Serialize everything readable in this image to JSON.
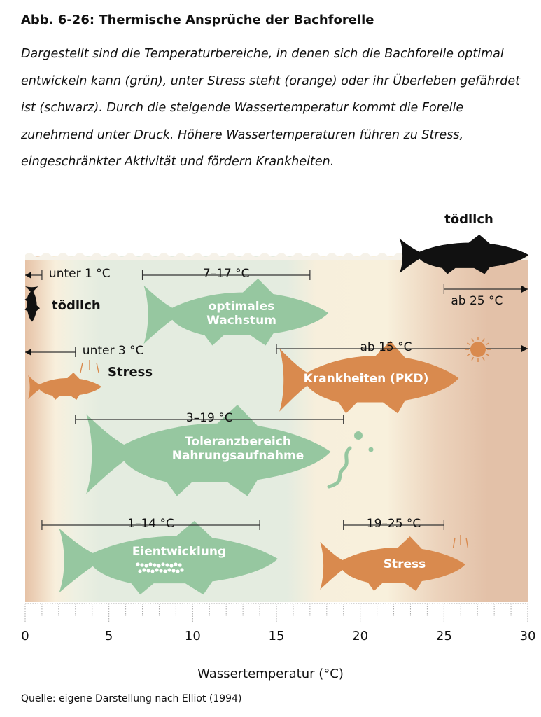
{
  "title": "Abb. 6-26: Thermische Ansprüche der Bachforelle",
  "subtitle": "Dargestellt sind die Temperaturbereiche, in denen sich die Bachforelle optimal entwickeln kann (grün), unter Stress steht (orange) oder ihr Überleben gefährdet ist (schwarz). Durch die steigende Wassertemperatur kommt die Forelle zunehmend unter Druck. Höhere Wassertemperaturen führen zu Stress, eingeschränkter Aktivität und fördern Krankheiten.",
  "colors": {
    "optimal": "#96c7a0",
    "stress": "#d98a4e",
    "lethal": "#111111"
  },
  "axis": {
    "label": "Wassertemperatur (°C)",
    "min": 0,
    "max": 30,
    "ticks": [
      "0",
      "5",
      "10",
      "15",
      "20",
      "25",
      "30"
    ]
  },
  "ranges": [
    {
      "id": "cold-lethal",
      "label": "unter 1 °C",
      "from": 0,
      "to": 1,
      "open": "left",
      "category": "lethal",
      "fish_label": "tödlich"
    },
    {
      "id": "optimal-growth",
      "label": "7–17 °C",
      "from": 7,
      "to": 17,
      "category": "optimal",
      "fish_label": "optimales\nWachstum"
    },
    {
      "id": "heat-lethal",
      "label": "ab 25 °C",
      "from": 25,
      "to": 30,
      "open": "right",
      "category": "lethal",
      "fish_label": "tödlich"
    },
    {
      "id": "cold-stress",
      "label": "unter 3 °C",
      "from": 0,
      "to": 3,
      "open": "left",
      "category": "stress",
      "fish_label": "Stress"
    },
    {
      "id": "disease",
      "label": "ab 15 °C",
      "from": 15,
      "to": 30,
      "open": "right",
      "category": "stress",
      "fish_label": "Krankheiten (PKD)"
    },
    {
      "id": "feeding-tolerance",
      "label": "3–19 °C",
      "from": 3,
      "to": 19,
      "category": "optimal",
      "fish_label": "Toleranzbereich\nNahrungsaufnahme"
    },
    {
      "id": "egg-development",
      "label": "1–14 °C",
      "from": 1,
      "to": 14,
      "category": "optimal",
      "fish_label": "Eientwicklung"
    },
    {
      "id": "heat-stress",
      "label": "19–25 °C",
      "from": 19,
      "to": 25,
      "category": "stress",
      "fish_label": "Stress"
    }
  ],
  "source": "Quelle: eigene Darstellung nach Elliot (1994)"
}
